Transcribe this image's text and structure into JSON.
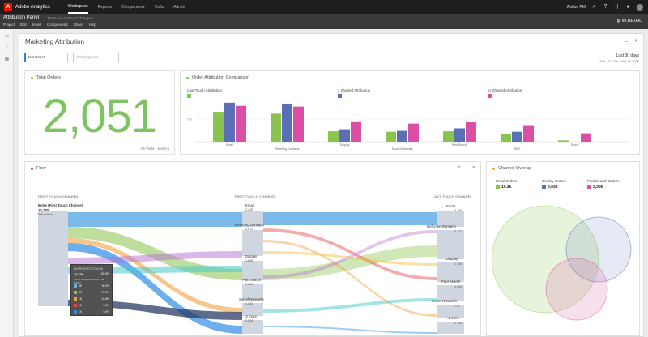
{
  "topbar": {
    "app_name": "Adobe Analytics",
    "nav": [
      "Workspace",
      "Reports",
      "Components",
      "Tools",
      "Admin"
    ],
    "org": "Adobe PM"
  },
  "project": {
    "title": "Attribution Panel",
    "unsaved": "There are unsaved changes",
    "menu": [
      "Project",
      "Edit",
      "Insert",
      "Components",
      "Share",
      "Help"
    ],
    "report_suite": "ee.RETAIL"
  },
  "panel": {
    "title": "Marketing Attribution",
    "segment": "Not Direct",
    "add_segment_placeholder": "Add Segment",
    "date_label": "Last 30 days",
    "date_range": "Feb 13 2018 - Mar 14 2018"
  },
  "total_orders": {
    "title": "Total Orders",
    "value": "2,051",
    "footer": "All Visits - Metrics"
  },
  "comparison": {
    "title": "Order Attribution Comparison",
    "ytick": "500",
    "series": [
      {
        "name": "Last Touch Attribution",
        "color": "#8ac34e"
      },
      {
        "name": "J Shaped Attribution",
        "color": "#5a6fb6"
      },
      {
        "name": "U Shaped Attribution",
        "color": "#d94fa3"
      }
    ]
  },
  "chart_data": {
    "type": "bar",
    "title": "Order Attribution Comparison",
    "categories": [
      "Email",
      "Referring Domains",
      "Display",
      "Social Networks",
      "Paid Search",
      "SEO",
      "Direct"
    ],
    "series": [
      {
        "name": "Last Touch Attribution",
        "values": [
          660,
          620,
          230,
          220,
          230,
          175,
          30
        ]
      },
      {
        "name": "J Shaped Attribution",
        "values": [
          860,
          840,
          275,
          240,
          295,
          220,
          0
        ]
      },
      {
        "name": "U Shaped Attribution",
        "values": [
          790,
          775,
          450,
          400,
          435,
          365,
          185
        ]
      }
    ],
    "ytick": 500,
    "ylim": [
      0,
      1000
    ]
  },
  "flow": {
    "title": "Flow",
    "col1_header": "FIRST TOUCH CHANNEL",
    "col2_header": "FIRST TOUCH CHANNEL",
    "col3_header": "LAST TOUCH CHANNEL",
    "entry_label": "Entry (First Touch Channel)",
    "entry_value": "10,730",
    "entry_sub": "Path Views",
    "mid_nodes": [
      {
        "label": "Email",
        "value": "3,249"
      },
      {
        "label": "Referring Domains",
        "value": "3,872"
      },
      {
        "label": "Display",
        "value": "1,805"
      },
      {
        "label": "Paid Search",
        "value": "1,236"
      },
      {
        "label": "Social Networks",
        "value": "1,032"
      },
      {
        "label": "+2 more",
        "value": "2,834"
      }
    ],
    "right_nodes": [
      {
        "label": "Email",
        "value": "3,130"
      },
      {
        "label": "Referring Domains",
        "value": "3,717"
      },
      {
        "label": "Display",
        "value": "1,740"
      },
      {
        "label": "Paid Search",
        "value": "1,234"
      },
      {
        "label": "Social Networks",
        "value": "778"
      },
      {
        "label": "+1 more",
        "value": "2,130"
      }
    ],
    "tooltip": {
      "title": "ENTRY (FIRST TOUCH)",
      "value": "10,730",
      "pct": "100.0%",
      "sub": "TOP 5 LANDING FROM THE POINT",
      "rows": [
        {
          "label": "3K",
          "pct": "30.2%"
        },
        {
          "label": "3K",
          "pct": "24.2%"
        },
        {
          "label": "1K",
          "pct": "16.8%"
        },
        {
          "label": "1K",
          "pct": "9.6%"
        },
        {
          "label": "1K",
          "pct": "9.6%"
        }
      ]
    }
  },
  "overlap": {
    "title": "Channel Overlap",
    "items": [
      {
        "label": "Email Orders",
        "value": "10.2k",
        "color": "#8ac34e"
      },
      {
        "label": "Display Orders",
        "value": "3,636",
        "color": "#5a6fb6"
      },
      {
        "label": "Paid Search Orders",
        "value": "3,380",
        "color": "#d94fa3"
      }
    ]
  }
}
